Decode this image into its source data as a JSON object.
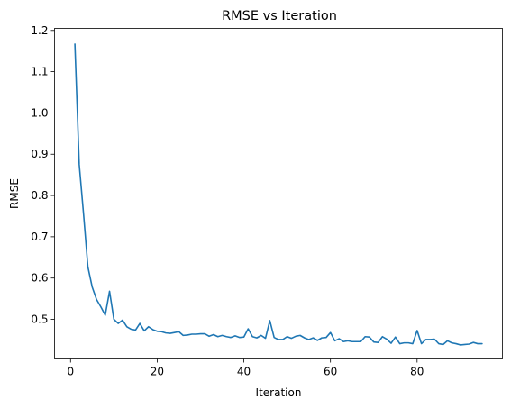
{
  "chart_data": {
    "type": "line",
    "title": "RMSE vs Iteration",
    "xlabel": "Iteration",
    "ylabel": "RMSE",
    "xlim": [
      -3.7,
      99.7
    ],
    "ylim": [
      0.404,
      1.205
    ],
    "xticks": [
      0,
      20,
      40,
      60,
      80
    ],
    "xtick_labels": [
      "0",
      "20",
      "40",
      "60",
      "80"
    ],
    "yticks": [
      0.5,
      0.6,
      0.7,
      0.8,
      0.9,
      1.0,
      1.1,
      1.2
    ],
    "ytick_labels": [
      "0.5",
      "0.6",
      "0.7",
      "0.8",
      "0.9",
      "1.0",
      "1.1",
      "1.2"
    ],
    "grid": false,
    "series": [
      {
        "color": "#1f77b4",
        "x": [
          1,
          2,
          3,
          4,
          5,
          6,
          7,
          8,
          9,
          10,
          11,
          12,
          13,
          14,
          15,
          16,
          17,
          18,
          19,
          20,
          21,
          22,
          23,
          24,
          25,
          26,
          27,
          28,
          29,
          30,
          31,
          32,
          33,
          34,
          35,
          36,
          37,
          38,
          39,
          40,
          41,
          42,
          43,
          44,
          45,
          46,
          47,
          48,
          49,
          50,
          51,
          52,
          53,
          54,
          55,
          56,
          57,
          58,
          59,
          60,
          61,
          62,
          63,
          64,
          65,
          66,
          67,
          68,
          69,
          70,
          71,
          72,
          73,
          74,
          75,
          76,
          77,
          78,
          79,
          80,
          81,
          82,
          83,
          84,
          85,
          86,
          87,
          88,
          89,
          90,
          91,
          92,
          93,
          94,
          95
        ],
        "y": [
          1.167,
          0.875,
          0.755,
          0.627,
          0.578,
          0.548,
          0.53,
          0.51,
          0.568,
          0.5,
          0.49,
          0.498,
          0.482,
          0.476,
          0.474,
          0.49,
          0.472,
          0.482,
          0.475,
          0.471,
          0.47,
          0.467,
          0.466,
          0.468,
          0.47,
          0.461,
          0.462,
          0.464,
          0.464,
          0.465,
          0.465,
          0.459,
          0.463,
          0.458,
          0.461,
          0.458,
          0.456,
          0.46,
          0.456,
          0.457,
          0.477,
          0.458,
          0.455,
          0.461,
          0.454,
          0.497,
          0.456,
          0.451,
          0.451,
          0.458,
          0.454,
          0.459,
          0.461,
          0.455,
          0.451,
          0.455,
          0.449,
          0.455,
          0.456,
          0.468,
          0.448,
          0.453,
          0.446,
          0.448,
          0.446,
          0.446,
          0.446,
          0.458,
          0.457,
          0.445,
          0.444,
          0.458,
          0.452,
          0.442,
          0.457,
          0.441,
          0.443,
          0.443,
          0.441,
          0.473,
          0.441,
          0.451,
          0.451,
          0.452,
          0.441,
          0.439,
          0.448,
          0.443,
          0.441,
          0.438,
          0.439,
          0.44,
          0.444,
          0.441,
          0.441
        ]
      }
    ]
  }
}
